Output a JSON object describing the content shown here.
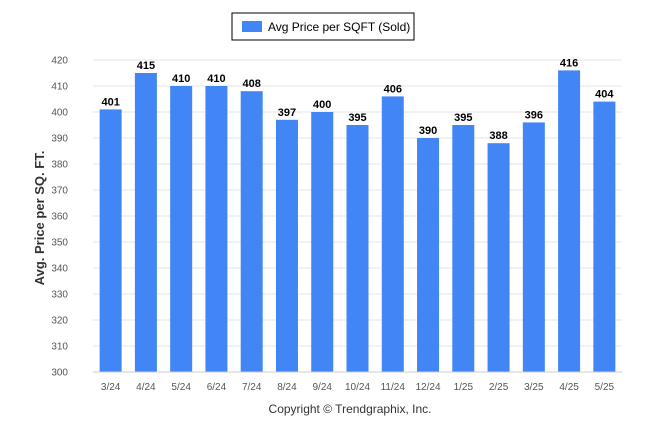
{
  "chart_data": {
    "type": "bar",
    "categories": [
      "3/24",
      "4/24",
      "5/24",
      "6/24",
      "7/24",
      "8/24",
      "9/24",
      "10/24",
      "11/24",
      "12/24",
      "1/25",
      "2/25",
      "3/25",
      "4/25",
      "5/25"
    ],
    "series": [
      {
        "name": "Avg Price per SQFT (Sold)",
        "values": [
          401,
          415,
          410,
          410,
          408,
          397,
          400,
          395,
          406,
          390,
          395,
          388,
          396,
          416,
          404
        ]
      }
    ],
    "title": "",
    "xlabel": "",
    "ylabel": "Avg. Price per SQ. FT.",
    "ylim": [
      300,
      420
    ],
    "yticks": [
      300,
      310,
      320,
      330,
      340,
      350,
      360,
      370,
      380,
      390,
      400,
      410,
      420
    ],
    "grid": true,
    "legend_position": "top-center",
    "data_labels": true,
    "colors": {
      "bar": "#4285f4",
      "grid": "#e6e6e6"
    }
  },
  "footer": {
    "copyright": "Copyright © Trendgraphix, Inc."
  }
}
